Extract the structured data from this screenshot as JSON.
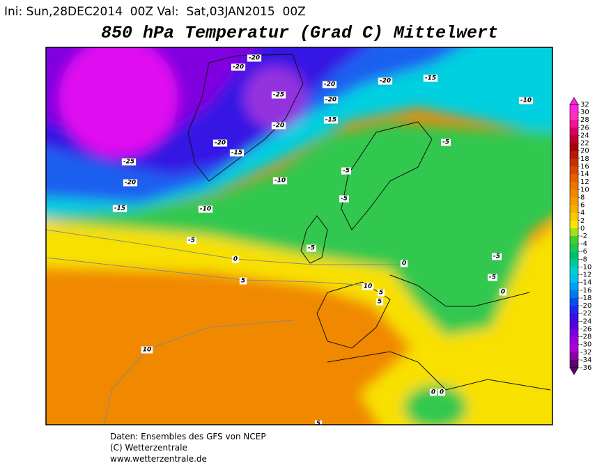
{
  "header": {
    "init": "Ini: Sun,28DEC2014  00Z Val:  Sat,03JAN2015  00Z",
    "title": "850 hPa Temperatur (Grad C) Mittelwert"
  },
  "map": {
    "contour_labels": [
      "-20",
      "-20",
      "-20",
      "-20",
      "-15",
      "-25",
      "-20",
      "-20",
      "-15",
      "-10",
      "-20",
      "-15",
      "-5",
      "-25",
      "-5",
      "-10",
      "-20",
      "-5",
      "-15",
      "-10",
      "-5",
      "-5",
      "-5",
      "0",
      "0",
      "-5",
      "5",
      "10",
      "0",
      "5",
      "5",
      "10",
      "0",
      "0",
      "5"
    ]
  },
  "colorbar": {
    "ticks": [
      32,
      30,
      28,
      26,
      24,
      22,
      20,
      18,
      16,
      14,
      12,
      10,
      8,
      6,
      4,
      2,
      0,
      -2,
      -4,
      -6,
      -8,
      -10,
      -12,
      -14,
      -16,
      -18,
      -20,
      -22,
      -24,
      -26,
      -28,
      -30,
      -32,
      -34,
      -36
    ],
    "colors": [
      "#ff20e0",
      "#ff30c0",
      "#f01890",
      "#d80060",
      "#c00030",
      "#a80010",
      "#b81808",
      "#c83000",
      "#d84800",
      "#e46000",
      "#ec7400",
      "#f08800",
      "#f49c00",
      "#f8b000",
      "#fcc800",
      "#f8e800",
      "#a0e020",
      "#40d030",
      "#20c850",
      "#00c070",
      "#00c8a0",
      "#00d0d0",
      "#00c0f0",
      "#00a0f0",
      "#0078f0",
      "#0050f0",
      "#2028f0",
      "#3a10e8",
      "#5800e0",
      "#7800e0",
      "#9800e0",
      "#b000d8",
      "#8c00a8",
      "#600070"
    ]
  },
  "footer": {
    "lines": [
      "Daten: Ensembles des GFS von NCEP",
      "(C) Wetterzentrale",
      "www.wetterzentrale.de"
    ]
  }
}
